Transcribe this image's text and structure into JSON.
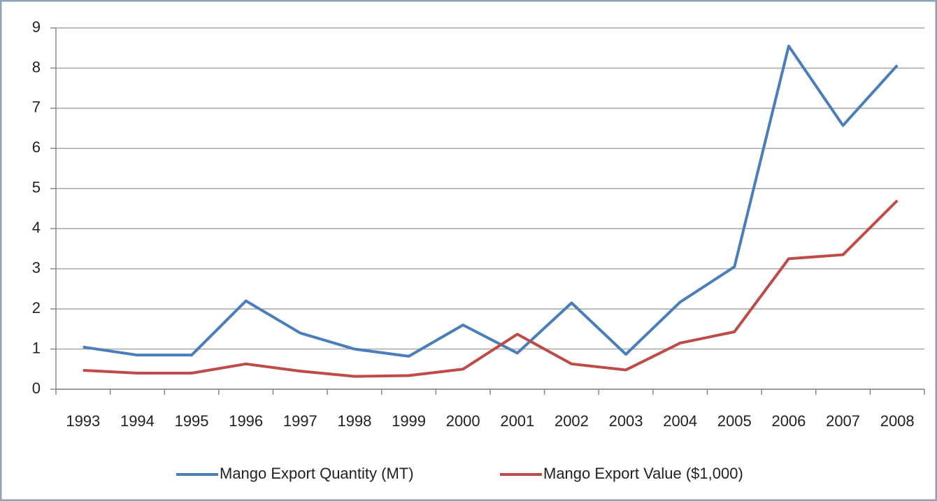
{
  "chart_data": {
    "type": "line",
    "categories": [
      "1993",
      "1994",
      "1995",
      "1996",
      "1997",
      "1998",
      "1999",
      "2000",
      "2001",
      "2002",
      "2003",
      "2004",
      "2005",
      "2006",
      "2007",
      "2008"
    ],
    "series": [
      {
        "name": "Mango Export Quantity (MT)",
        "color": "#4a7ebb",
        "values": [
          1.05,
          0.85,
          0.85,
          2.2,
          1.4,
          1.0,
          0.82,
          1.6,
          0.9,
          2.15,
          0.87,
          2.17,
          3.05,
          8.55,
          6.57,
          8.07
        ]
      },
      {
        "name": "Mango Export Value ($1,000)",
        "color": "#be4b48",
        "values": [
          0.47,
          0.4,
          0.4,
          0.63,
          0.45,
          0.32,
          0.34,
          0.5,
          1.37,
          0.63,
          0.48,
          1.15,
          1.43,
          3.25,
          3.35,
          4.7
        ]
      }
    ],
    "ylim": [
      0,
      9
    ],
    "yticks": [
      0,
      1,
      2,
      3,
      4,
      5,
      6,
      7,
      8,
      9
    ],
    "grid": true,
    "legend": "bottom"
  }
}
